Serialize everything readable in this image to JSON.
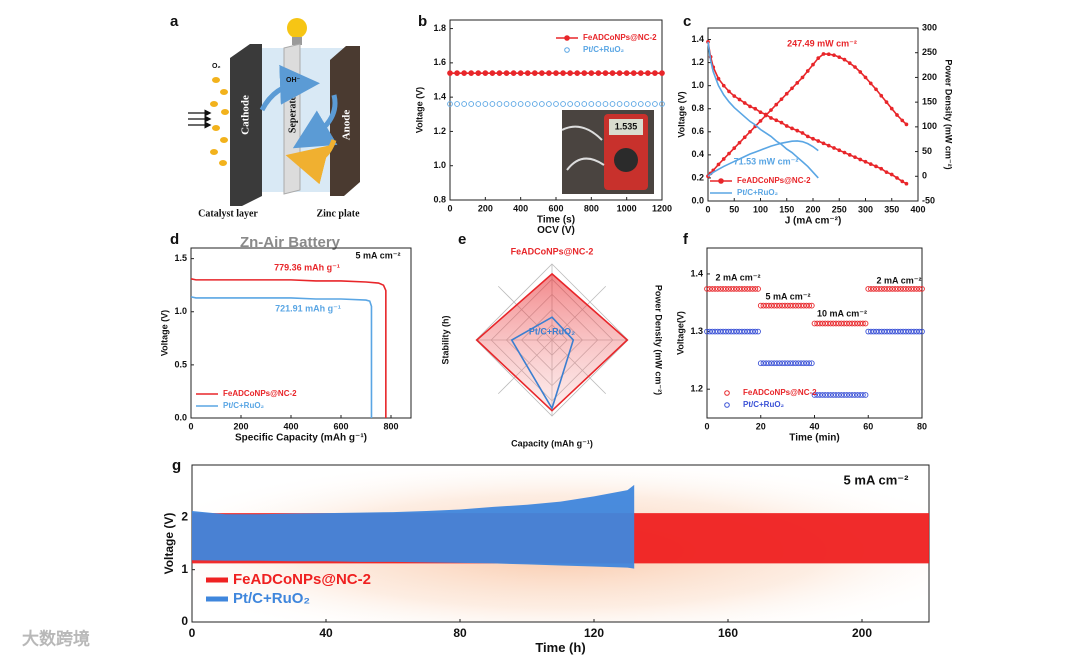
{
  "diagram": {
    "panel": "a",
    "o2": "O₂",
    "oh": "OH⁻",
    "cathode": "Cathode",
    "separator": "Seperator",
    "anode": "Anode",
    "catalyst": "Catalyst layer",
    "zinc": "Zinc plate",
    "title": "Zn-Air Battery"
  },
  "watermark": "大数跨境",
  "chart_data": [
    {
      "type": "line",
      "panel": "b",
      "xlabel": "Time (s)",
      "subtitle": "OCV (V)",
      "ylabel": "Voltage (V)",
      "xlim": [
        0,
        1200
      ],
      "ylim": [
        0.8,
        1.85
      ],
      "xticks": [
        0,
        200,
        400,
        600,
        800,
        1000,
        1200
      ],
      "yticks": [
        0.8,
        {
          "value": 1,
          "label": "1.0"
        },
        1.2,
        1.4,
        1.6,
        1.8
      ],
      "x": [
        0,
        40,
        80,
        120,
        160,
        200,
        240,
        280,
        320,
        360,
        400,
        440,
        480,
        520,
        560,
        600,
        640,
        680,
        720,
        760,
        800,
        840,
        880,
        920,
        960,
        1000,
        1040,
        1080,
        1120,
        1160,
        1200
      ],
      "series": [
        {
          "name": "FeADCoNPs@NC-2",
          "color": "#e8262a",
          "marker": "filled-circle",
          "values": [
            1.54,
            1.54,
            1.54,
            1.54,
            1.54,
            1.54,
            1.54,
            1.54,
            1.54,
            1.54,
            1.54,
            1.54,
            1.54,
            1.54,
            1.54,
            1.54,
            1.54,
            1.54,
            1.54,
            1.54,
            1.54,
            1.54,
            1.54,
            1.54,
            1.54,
            1.54,
            1.54,
            1.54,
            1.54,
            1.54,
            1.54
          ]
        },
        {
          "name": "Pt/C+RuO₂",
          "color": "#5aa6e4",
          "marker": "open-circle",
          "line": false,
          "values": [
            1.36,
            1.36,
            1.36,
            1.36,
            1.36,
            1.36,
            1.36,
            1.36,
            1.36,
            1.36,
            1.36,
            1.36,
            1.36,
            1.36,
            1.36,
            1.36,
            1.36,
            1.36,
            1.36,
            1.36,
            1.36,
            1.36,
            1.36,
            1.36,
            1.36,
            1.36,
            1.36,
            1.36,
            1.36,
            1.36,
            1.36
          ]
        }
      ],
      "legend": "upper right",
      "inset_display": "1.535"
    },
    {
      "type": "line",
      "panel": "c",
      "xlabel": "J (mA cm⁻²)",
      "ylabel": "Voltage (V)",
      "y2label": "Power Density (mW cm⁻²)",
      "xlim": [
        0,
        400
      ],
      "ylim": [
        0,
        1.5
      ],
      "y2lim": [
        -50,
        300
      ],
      "xticks": [
        0,
        50,
        100,
        150,
        200,
        250,
        300,
        350,
        400
      ],
      "yticks": [
        {
          "value": 0,
          "label": "0.0"
        },
        0.2,
        0.4,
        0.6,
        0.8,
        {
          "value": 1,
          "label": "1.0"
        },
        1.2,
        1.4
      ],
      "y2ticks": [
        -50,
        0,
        50,
        100,
        150,
        200,
        250,
        300
      ],
      "series": [
        {
          "name": "FeADCoNPs@NC-2",
          "color": "#e8262a",
          "marker": "dot",
          "x": [
            0,
            5,
            10,
            20,
            30,
            40,
            50,
            60,
            70,
            80,
            90,
            100,
            110,
            120,
            130,
            140,
            150,
            160,
            170,
            180,
            190,
            200,
            210,
            220,
            230,
            240,
            250,
            260,
            270,
            280,
            290,
            300,
            310,
            320,
            330,
            340,
            350,
            360,
            370,
            378
          ],
          "values": [
            1.38,
            1.25,
            1.16,
            1.06,
            1.0,
            0.95,
            0.91,
            0.88,
            0.85,
            0.82,
            0.8,
            0.77,
            0.75,
            0.72,
            0.7,
            0.68,
            0.65,
            0.63,
            0.61,
            0.59,
            0.56,
            0.54,
            0.52,
            0.5,
            0.48,
            0.46,
            0.44,
            0.42,
            0.4,
            0.38,
            0.36,
            0.34,
            0.32,
            0.3,
            0.28,
            0.25,
            0.23,
            0.2,
            0.17,
            0.15
          ]
        },
        {
          "color": "#e8262a",
          "marker": "dot",
          "axis": "y2",
          "x": [
            0,
            5,
            10,
            20,
            30,
            40,
            50,
            60,
            70,
            80,
            90,
            100,
            110,
            120,
            130,
            140,
            150,
            160,
            170,
            180,
            190,
            200,
            210,
            220,
            230,
            240,
            250,
            260,
            270,
            280,
            290,
            300,
            310,
            320,
            330,
            340,
            350,
            360,
            370,
            378
          ],
          "values": [
            0,
            6,
            12,
            24,
            35,
            46,
            57,
            68,
            79,
            90,
            101,
            112,
            123,
            134,
            145,
            156,
            167,
            178,
            189,
            200,
            213,
            226,
            239,
            247.49,
            247,
            245,
            241,
            236,
            229,
            221,
            211,
            200,
            188,
            176,
            163,
            150,
            137,
            124,
            113,
            105
          ]
        },
        {
          "name": "Pt/C+RuO₂",
          "color": "#5aa6e4",
          "x": [
            0,
            5,
            10,
            20,
            30,
            40,
            50,
            60,
            70,
            80,
            90,
            100,
            110,
            120,
            130,
            140,
            150,
            160,
            170,
            180,
            190,
            200,
            210
          ],
          "values": [
            1.38,
            1.22,
            1.12,
            1.0,
            0.92,
            0.86,
            0.81,
            0.77,
            0.73,
            0.69,
            0.66,
            0.62,
            0.59,
            0.56,
            0.52,
            0.49,
            0.45,
            0.42,
            0.38,
            0.34,
            0.3,
            0.25,
            0.2
          ]
        },
        {
          "color": "#5aa6e4",
          "axis": "y2",
          "x": [
            0,
            5,
            10,
            20,
            30,
            40,
            50,
            60,
            70,
            80,
            90,
            100,
            110,
            120,
            130,
            140,
            150,
            160,
            170,
            180,
            190,
            200,
            210
          ],
          "values": [
            0,
            4,
            8,
            14,
            20,
            25,
            30,
            35,
            40,
            45,
            49,
            53,
            57,
            61,
            64,
            67,
            69,
            71,
            71.53,
            70,
            66,
            60,
            52
          ]
        }
      ],
      "annotations": [
        "247.49 mW cm⁻²",
        "71.53 mW cm⁻²"
      ],
      "legend": "lower left"
    },
    {
      "type": "line",
      "panel": "d",
      "xlabel": "Specific Capacity (mAh g⁻¹)",
      "ylabel": "Voltage (V)",
      "xlim": [
        0,
        880
      ],
      "ylim": [
        0,
        1.6
      ],
      "xticks": [
        0,
        200,
        400,
        600,
        800
      ],
      "yticks": [
        {
          "value": 0,
          "label": "0.0"
        },
        0.5,
        {
          "value": 1,
          "label": "1.0"
        },
        1.5
      ],
      "series": [
        {
          "name": "FeADCoNPs@NC-2",
          "color": "#e8262a",
          "x": [
            0,
            20,
            100,
            200,
            300,
            400,
            500,
            600,
            700,
            750,
            770,
            779.36,
            779.36
          ],
          "values": [
            1.31,
            1.3,
            1.3,
            1.3,
            1.3,
            1.3,
            1.29,
            1.29,
            1.28,
            1.27,
            1.25,
            1.2,
            0
          ]
        },
        {
          "name": "Pt/C+RuO₂",
          "color": "#5aa6e4",
          "x": [
            0,
            20,
            100,
            200,
            300,
            400,
            500,
            600,
            700,
            715,
            721.91,
            721.91
          ],
          "values": [
            1.14,
            1.13,
            1.13,
            1.13,
            1.13,
            1.13,
            1.12,
            1.12,
            1.11,
            1.1,
            1.05,
            0
          ]
        }
      ],
      "annotations": [
        "779.36 mAh g⁻¹",
        "721.91 mAh g⁻¹",
        "5 mA cm⁻²"
      ],
      "legend": "lower left"
    },
    {
      "type": "radar",
      "panel": "e",
      "categories": [
        null,
        "Power Density (mW cm⁻²)",
        "Capacity (mAh g⁻¹)",
        "Stability (h)"
      ],
      "rlim": [
        0,
        1
      ],
      "rticks": [
        0.2,
        0.4,
        0.6,
        0.8,
        1
      ],
      "series": [
        {
          "name": "FeADCoNPs@NC-2",
          "color": "#e8262a",
          "values": [
            0.87,
            0.99,
            0.93,
            0.99
          ]
        },
        {
          "name": "Pt/C+RuO₂",
          "color": "#3b7fd0",
          "values": [
            0.3,
            0.28,
            0.9,
            0.53
          ]
        }
      ]
    },
    {
      "type": "line",
      "panel": "f",
      "xlabel": "Time (min)",
      "ylabel": "Voltage(V)",
      "xlim": [
        0,
        80
      ],
      "ylim": [
        1.15,
        1.445
      ],
      "xticks": [
        0,
        20,
        40,
        60,
        80
      ],
      "yticks": [
        1.2,
        1.3,
        1.4
      ],
      "x": [
        0,
        1,
        2,
        3,
        4,
        5,
        6,
        7,
        8,
        9,
        10,
        11,
        12,
        13,
        14,
        15,
        16,
        17,
        18,
        19,
        20,
        21,
        22,
        23,
        24,
        25,
        26,
        27,
        28,
        29,
        30,
        31,
        32,
        33,
        34,
        35,
        36,
        37,
        38,
        39,
        40,
        41,
        42,
        43,
        44,
        45,
        46,
        47,
        48,
        49,
        50,
        51,
        52,
        53,
        54,
        55,
        56,
        57,
        58,
        59,
        60,
        61,
        62,
        63,
        64,
        65,
        66,
        67,
        68,
        69,
        70,
        71,
        72,
        73,
        74,
        75,
        76,
        77,
        78,
        79,
        80
      ],
      "series": [
        {
          "name": "FeADCoNPs@NC-2",
          "color": "#e8262a",
          "marker": "open-circle",
          "line": false,
          "values": [
            1.374,
            1.374,
            1.374,
            1.374,
            1.374,
            1.374,
            1.374,
            1.374,
            1.374,
            1.374,
            1.374,
            1.374,
            1.374,
            1.374,
            1.374,
            1.374,
            1.374,
            1.374,
            1.374,
            1.374,
            1.345,
            1.345,
            1.345,
            1.345,
            1.345,
            1.345,
            1.345,
            1.345,
            1.345,
            1.345,
            1.345,
            1.345,
            1.345,
            1.345,
            1.345,
            1.345,
            1.345,
            1.345,
            1.345,
            1.345,
            1.314,
            1.314,
            1.314,
            1.314,
            1.314,
            1.314,
            1.314,
            1.314,
            1.314,
            1.314,
            1.314,
            1.314,
            1.314,
            1.314,
            1.314,
            1.314,
            1.314,
            1.314,
            1.314,
            1.314,
            1.374,
            1.374,
            1.374,
            1.374,
            1.374,
            1.374,
            1.374,
            1.374,
            1.374,
            1.374,
            1.374,
            1.374,
            1.374,
            1.374,
            1.374,
            1.374,
            1.374,
            1.374,
            1.374,
            1.374,
            1.374
          ]
        },
        {
          "name": "Pt/C+RuO₂",
          "color": "#3b52d6",
          "marker": "open-circle",
          "line": false,
          "values": [
            1.3,
            1.3,
            1.3,
            1.3,
            1.3,
            1.3,
            1.3,
            1.3,
            1.3,
            1.3,
            1.3,
            1.3,
            1.3,
            1.3,
            1.3,
            1.3,
            1.3,
            1.3,
            1.3,
            1.3,
            1.245,
            1.245,
            1.245,
            1.245,
            1.245,
            1.245,
            1.245,
            1.245,
            1.245,
            1.245,
            1.245,
            1.245,
            1.245,
            1.245,
            1.245,
            1.245,
            1.245,
            1.245,
            1.245,
            1.245,
            1.19,
            1.19,
            1.19,
            1.19,
            1.19,
            1.19,
            1.19,
            1.19,
            1.19,
            1.19,
            1.19,
            1.19,
            1.19,
            1.19,
            1.19,
            1.19,
            1.19,
            1.19,
            1.19,
            1.19,
            1.3,
            1.3,
            1.3,
            1.3,
            1.3,
            1.3,
            1.3,
            1.3,
            1.3,
            1.3,
            1.3,
            1.3,
            1.3,
            1.3,
            1.3,
            1.3,
            1.3,
            1.3,
            1.3,
            1.3,
            1.3
          ]
        }
      ],
      "annotations": [
        "2 mA cm⁻²",
        "5 mA cm⁻²",
        "10 mA cm⁻²",
        "2 mA cm⁻²"
      ],
      "legend": "lower left"
    },
    {
      "type": "area",
      "panel": "g",
      "xlabel": "Time (h)",
      "ylabel": "Voltage (V)",
      "xlim": [
        0,
        220
      ],
      "ylim": [
        0,
        3
      ],
      "xticks": [
        0,
        40,
        80,
        120,
        160,
        200
      ],
      "yticks": [
        0,
        1,
        2
      ],
      "series": [
        {
          "name": "FeADCoNPs@NC-2",
          "color": "#ef2020",
          "x": [
            0,
            10,
            20,
            30,
            40,
            50,
            60,
            70,
            80,
            90,
            100,
            110,
            120,
            130,
            140,
            150,
            160,
            170,
            180,
            190,
            200,
            210,
            220
          ],
          "values": [
            2.08,
            2.08,
            2.08,
            2.08,
            2.08,
            2.08,
            2.08,
            2.08,
            2.08,
            2.08,
            2.08,
            2.08,
            2.08,
            2.08,
            2.08,
            2.08,
            2.08,
            2.08,
            2.08,
            2.08,
            2.08,
            2.08,
            2.08
          ],
          "lower": [
            1.12,
            1.12,
            1.12,
            1.12,
            1.12,
            1.12,
            1.12,
            1.12,
            1.12,
            1.12,
            1.12,
            1.12,
            1.12,
            1.12,
            1.12,
            1.12,
            1.12,
            1.12,
            1.12,
            1.12,
            1.12,
            1.12,
            1.12
          ]
        },
        {
          "name": "Pt/C+RuO₂",
          "color": "#3f86dc",
          "x": [
            0,
            10,
            20,
            30,
            40,
            50,
            60,
            70,
            80,
            90,
            100,
            110,
            120,
            130,
            132
          ],
          "values": [
            2.12,
            2.06,
            2.06,
            2.07,
            2.08,
            2.09,
            2.1,
            2.12,
            2.15,
            2.2,
            2.24,
            2.3,
            2.4,
            2.52,
            2.62
          ],
          "lower": [
            1.18,
            1.17,
            1.17,
            1.16,
            1.16,
            1.15,
            1.15,
            1.14,
            1.13,
            1.12,
            1.1,
            1.08,
            1.06,
            1.04,
            1.02
          ]
        }
      ],
      "annotations": [
        "5 mA cm⁻²"
      ],
      "legend": "lower left"
    }
  ]
}
